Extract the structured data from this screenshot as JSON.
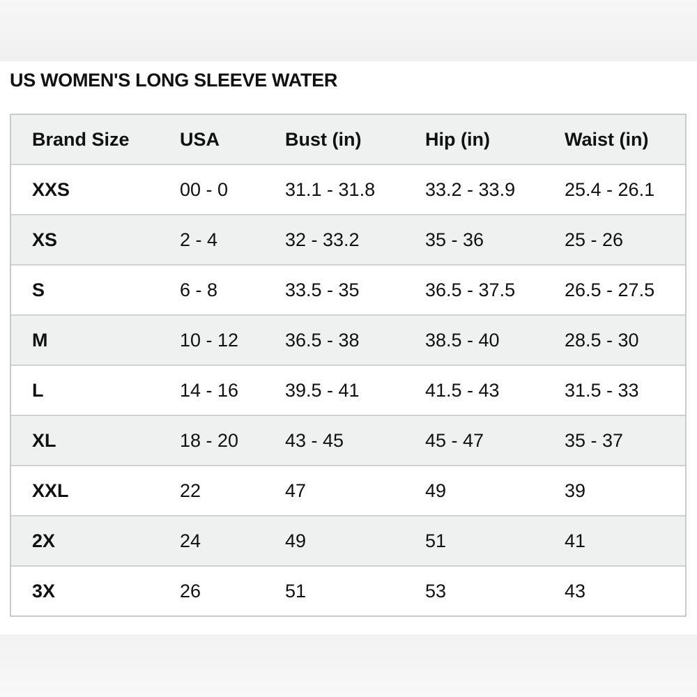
{
  "header": {
    "title": "US WOMEN'S LONG SLEEVE WATER"
  },
  "table": {
    "columns": [
      "Brand Size",
      "USA",
      "Bust (in)",
      "Hip (in)",
      "Waist (in)"
    ],
    "rows": [
      [
        "XXS",
        "00 - 0",
        "31.1 - 31.8",
        "33.2 - 33.9",
        "25.4 - 26.1"
      ],
      [
        "XS",
        "2 - 4",
        "32 - 33.2",
        "35 - 36",
        "25 - 26"
      ],
      [
        "S",
        "6 - 8",
        "33.5 - 35",
        "36.5 - 37.5",
        "26.5 - 27.5"
      ],
      [
        "M",
        "10 - 12",
        "36.5 - 38",
        "38.5 - 40",
        "28.5 - 30"
      ],
      [
        "L",
        "14 - 16",
        "39.5 - 41",
        "41.5 - 43",
        "31.5 - 33"
      ],
      [
        "XL",
        "18 - 20",
        "43 - 45",
        "45 - 47",
        "35 - 37"
      ],
      [
        "XXL",
        "22",
        "47",
        "49",
        "39"
      ],
      [
        "2X",
        "24",
        "49",
        "51",
        "41"
      ],
      [
        "3X",
        "26",
        "51",
        "53",
        "43"
      ]
    ]
  }
}
